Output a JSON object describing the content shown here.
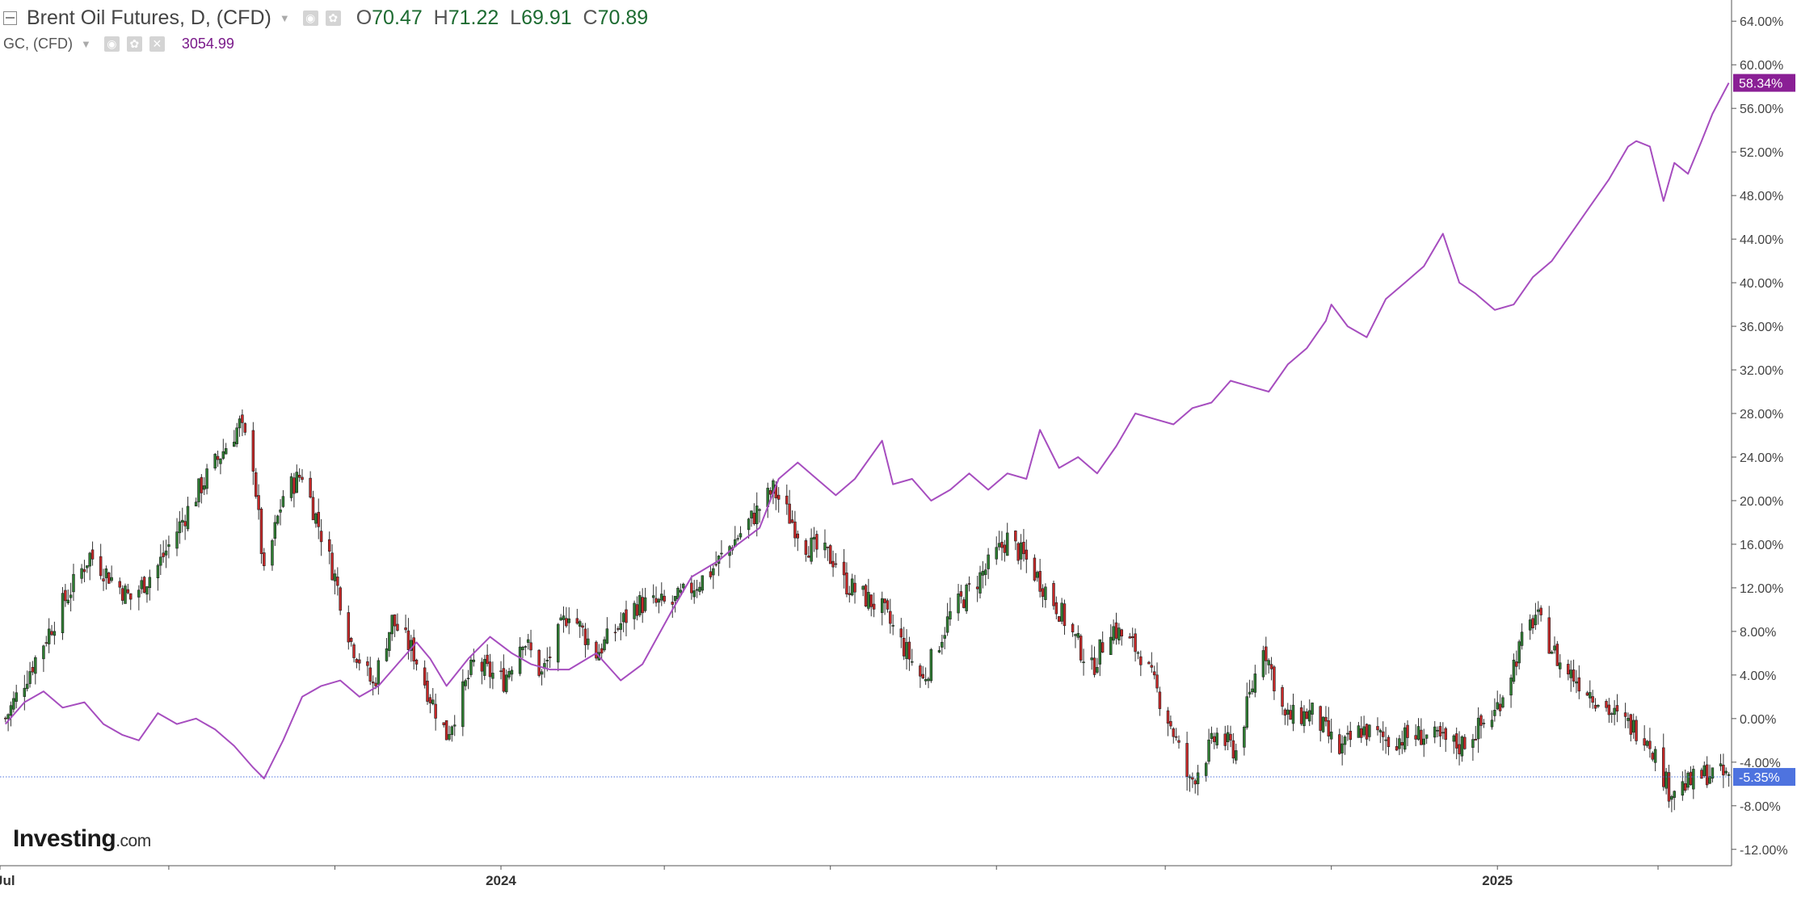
{
  "legend": {
    "main_title": "Brent Oil Futures, D, (CFD)",
    "o_label": "O",
    "o_value": "70.47",
    "h_label": "H",
    "h_value": "71.22",
    "l_label": "L",
    "l_value": "69.91",
    "c_label": "C",
    "c_value": "70.89",
    "sub_title": "GC, (CFD)",
    "gc_value": "3054.99"
  },
  "icons": {
    "collapse": "collapse-box-icon",
    "dropdown": "chevron-down-icon",
    "eye": "eye-icon",
    "settings": "gear-icon",
    "close": "close-icon"
  },
  "brand": {
    "name": "Investing",
    "suffix": ".com"
  },
  "colors": {
    "up": "#2e7d32",
    "down": "#c62828",
    "gold_line": "#a64dbf",
    "gold_badge": "#8a1f95",
    "brent_badge": "#4e73df",
    "axis": "#555555"
  },
  "chart_data": {
    "type": "candlestick+line",
    "title": "Brent Oil Futures, D, (CFD)",
    "yaxis": {
      "ylim": [
        -13.5,
        65.5
      ],
      "ticks": [
        64,
        60,
        56,
        52,
        48,
        44,
        40,
        36,
        32,
        28,
        24,
        20,
        16,
        12,
        8,
        4,
        0,
        -4,
        -8,
        -12
      ],
      "tick_labels": [
        "64.00%",
        "60.00%",
        "56.00%",
        "52.00%",
        "48.00%",
        "44.00%",
        "40.00%",
        "36.00%",
        "32.00%",
        "28.00%",
        "24.00%",
        "20.00%",
        "16.00%",
        "12.00%",
        "8.00%",
        "4.00%",
        "0.00%",
        "-4.00%",
        "-8.00%",
        "-12.00%"
      ]
    },
    "xaxis": {
      "range": [
        "2023-07-01",
        "2025-03-28"
      ],
      "labels": [
        {
          "date": "2023-07-01",
          "text": "Jul"
        },
        {
          "date": "2024-01-01",
          "text": "2024"
        },
        {
          "date": "2025-01-01",
          "text": "2025"
        }
      ],
      "ticks": [
        "2023-09-01",
        "2023-11-01",
        "2024-03-01",
        "2024-05-01",
        "2024-07-01",
        "2024-09-01",
        "2024-11-01",
        "2025-03-01"
      ]
    },
    "series": [
      {
        "name": "Brent Oil Futures",
        "kind": "candlestick",
        "anchors": [
          [
            "2023-07-03",
            0.0
          ],
          [
            "2023-07-14",
            5.5
          ],
          [
            "2023-07-24",
            10.5
          ],
          [
            "2023-08-03",
            15.0
          ],
          [
            "2023-08-18",
            11.0
          ],
          [
            "2023-08-28",
            14.0
          ],
          [
            "2023-09-12",
            21.0
          ],
          [
            "2023-09-27",
            27.0
          ],
          [
            "2023-10-02",
            23.5
          ],
          [
            "2023-10-06",
            13.0
          ],
          [
            "2023-10-13",
            20.5
          ],
          [
            "2023-10-20",
            22.5
          ],
          [
            "2023-11-01",
            13.0
          ],
          [
            "2023-11-07",
            7.0
          ],
          [
            "2023-11-15",
            3.0
          ],
          [
            "2023-11-22",
            9.0
          ],
          [
            "2023-11-30",
            6.0
          ],
          [
            "2023-12-06",
            2.0
          ],
          [
            "2023-12-12",
            -1.5
          ],
          [
            "2023-12-22",
            5.0
          ],
          [
            "2024-01-02",
            3.5
          ],
          [
            "2024-01-09",
            7.5
          ],
          [
            "2024-01-16",
            4.0
          ],
          [
            "2024-01-26",
            10.0
          ],
          [
            "2024-02-05",
            6.0
          ],
          [
            "2024-02-20",
            10.5
          ],
          [
            "2024-03-04",
            10.5
          ],
          [
            "2024-03-18",
            13.5
          ],
          [
            "2024-04-01",
            18.0
          ],
          [
            "2024-04-10",
            21.0
          ],
          [
            "2024-04-22",
            16.0
          ],
          [
            "2024-05-03",
            14.5
          ],
          [
            "2024-05-06",
            12.5
          ],
          [
            "2024-05-20",
            10.0
          ],
          [
            "2024-06-04",
            3.5
          ],
          [
            "2024-06-14",
            9.5
          ],
          [
            "2024-06-28",
            14.0
          ],
          [
            "2024-07-05",
            16.5
          ],
          [
            "2024-07-12",
            14.5
          ],
          [
            "2024-07-24",
            10.0
          ],
          [
            "2024-08-05",
            4.5
          ],
          [
            "2024-08-12",
            8.5
          ],
          [
            "2024-08-23",
            6.0
          ],
          [
            "2024-09-03",
            -0.5
          ],
          [
            "2024-09-10",
            -6.0
          ],
          [
            "2024-09-20",
            -1.5
          ],
          [
            "2024-09-27",
            -3.0
          ],
          [
            "2024-10-07",
            7.0
          ],
          [
            "2024-10-15",
            0.0
          ],
          [
            "2024-10-25",
            0.5
          ],
          [
            "2024-11-04",
            -3.0
          ],
          [
            "2024-11-12",
            -1.0
          ],
          [
            "2024-11-22",
            -2.0
          ],
          [
            "2024-12-04",
            -1.5
          ],
          [
            "2024-12-18",
            -2.5
          ],
          [
            "2024-12-31",
            0.5
          ],
          [
            "2025-01-10",
            7.0
          ],
          [
            "2025-01-15",
            9.5
          ],
          [
            "2025-01-24",
            5.0
          ],
          [
            "2025-02-04",
            2.5
          ],
          [
            "2025-02-14",
            0.0
          ],
          [
            "2025-02-25",
            -1.5
          ],
          [
            "2025-03-05",
            -6.5
          ],
          [
            "2025-03-12",
            -6.0
          ],
          [
            "2025-03-19",
            -5.0
          ],
          [
            "2025-03-27",
            -5.35
          ]
        ]
      },
      {
        "name": "GC, (CFD)",
        "kind": "line",
        "points": [
          [
            "2023-07-03",
            -0.5
          ],
          [
            "2023-07-10",
            1.5
          ],
          [
            "2023-07-17",
            2.5
          ],
          [
            "2023-07-24",
            1.0
          ],
          [
            "2023-08-01",
            1.5
          ],
          [
            "2023-08-08",
            -0.5
          ],
          [
            "2023-08-15",
            -1.5
          ],
          [
            "2023-08-21",
            -2.0
          ],
          [
            "2023-08-28",
            0.5
          ],
          [
            "2023-09-04",
            -0.5
          ],
          [
            "2023-09-11",
            0.0
          ],
          [
            "2023-09-18",
            -1.0
          ],
          [
            "2023-09-25",
            -2.5
          ],
          [
            "2023-10-02",
            -4.5
          ],
          [
            "2023-10-06",
            -5.5
          ],
          [
            "2023-10-13",
            -2.0
          ],
          [
            "2023-10-20",
            2.0
          ],
          [
            "2023-10-27",
            3.0
          ],
          [
            "2023-11-03",
            3.5
          ],
          [
            "2023-11-10",
            2.0
          ],
          [
            "2023-11-17",
            3.0
          ],
          [
            "2023-11-24",
            5.0
          ],
          [
            "2023-12-01",
            7.0
          ],
          [
            "2023-12-06",
            5.5
          ],
          [
            "2023-12-12",
            3.0
          ],
          [
            "2023-12-20",
            5.5
          ],
          [
            "2023-12-28",
            7.5
          ],
          [
            "2024-01-05",
            6.0
          ],
          [
            "2024-01-12",
            5.0
          ],
          [
            "2024-01-19",
            4.5
          ],
          [
            "2024-01-26",
            4.5
          ],
          [
            "2024-02-05",
            6.0
          ],
          [
            "2024-02-14",
            3.5
          ],
          [
            "2024-02-22",
            5.0
          ],
          [
            "2024-03-04",
            10.0
          ],
          [
            "2024-03-11",
            13.0
          ],
          [
            "2024-03-21",
            14.5
          ],
          [
            "2024-03-28",
            16.0
          ],
          [
            "2024-04-05",
            17.5
          ],
          [
            "2024-04-12",
            22.0
          ],
          [
            "2024-04-19",
            23.5
          ],
          [
            "2024-04-26",
            22.0
          ],
          [
            "2024-05-03",
            20.5
          ],
          [
            "2024-05-10",
            22.0
          ],
          [
            "2024-05-20",
            25.5
          ],
          [
            "2024-05-24",
            21.5
          ],
          [
            "2024-05-31",
            22.0
          ],
          [
            "2024-06-07",
            20.0
          ],
          [
            "2024-06-14",
            21.0
          ],
          [
            "2024-06-21",
            22.5
          ],
          [
            "2024-06-28",
            21.0
          ],
          [
            "2024-07-05",
            22.5
          ],
          [
            "2024-07-12",
            22.0
          ],
          [
            "2024-07-17",
            26.5
          ],
          [
            "2024-07-24",
            23.0
          ],
          [
            "2024-07-31",
            24.0
          ],
          [
            "2024-08-07",
            22.5
          ],
          [
            "2024-08-14",
            25.0
          ],
          [
            "2024-08-21",
            28.0
          ],
          [
            "2024-08-28",
            27.5
          ],
          [
            "2024-09-04",
            27.0
          ],
          [
            "2024-09-11",
            28.5
          ],
          [
            "2024-09-18",
            29.0
          ],
          [
            "2024-09-25",
            31.0
          ],
          [
            "2024-10-02",
            30.5
          ],
          [
            "2024-10-09",
            30.0
          ],
          [
            "2024-10-16",
            32.5
          ],
          [
            "2024-10-23",
            34.0
          ],
          [
            "2024-10-30",
            36.5
          ],
          [
            "2024-11-01",
            38.0
          ],
          [
            "2024-11-07",
            36.0
          ],
          [
            "2024-11-14",
            35.0
          ],
          [
            "2024-11-21",
            38.5
          ],
          [
            "2024-11-28",
            40.0
          ],
          [
            "2024-12-05",
            41.5
          ],
          [
            "2024-12-12",
            44.5
          ],
          [
            "2024-12-18",
            40.0
          ],
          [
            "2024-12-24",
            39.0
          ],
          [
            "2024-12-31",
            37.5
          ],
          [
            "2025-01-07",
            38.0
          ],
          [
            "2025-01-14",
            40.5
          ],
          [
            "2025-01-21",
            42.0
          ],
          [
            "2025-01-28",
            44.5
          ],
          [
            "2025-02-04",
            47.0
          ],
          [
            "2025-02-11",
            49.5
          ],
          [
            "2025-02-18",
            52.5
          ],
          [
            "2025-02-21",
            53.0
          ],
          [
            "2025-02-26",
            52.5
          ],
          [
            "2025-03-03",
            47.5
          ],
          [
            "2025-03-07",
            51.0
          ],
          [
            "2025-03-12",
            50.0
          ],
          [
            "2025-03-17",
            53.0
          ],
          [
            "2025-03-21",
            55.5
          ],
          [
            "2025-03-27",
            58.34
          ]
        ]
      }
    ],
    "last_values": [
      {
        "series": "GC, (CFD)",
        "value": 58.34,
        "label": "58.34%"
      },
      {
        "series": "Brent Oil Futures",
        "value": -5.35,
        "label": "-5.35%"
      }
    ]
  }
}
